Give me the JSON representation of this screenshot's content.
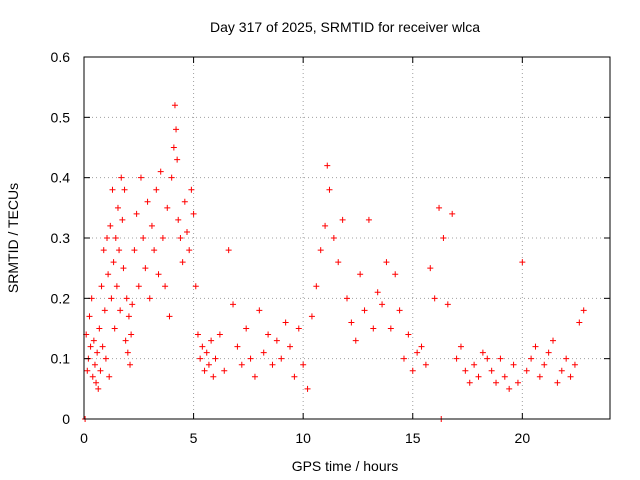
{
  "chart_data": {
    "type": "scatter",
    "title": "Day 317 of 2025, SRMTID for receiver wlca",
    "xlabel": "GPS time / hours",
    "ylabel": "SRMTID / TECUs",
    "xlim": [
      0,
      24
    ],
    "ylim": [
      0,
      0.6
    ],
    "grid": true,
    "x_ticks": [
      0,
      5,
      10,
      15,
      20
    ],
    "y_ticks": [
      0,
      0.1,
      0.2,
      0.3,
      0.4,
      0.5,
      0.6
    ],
    "x_tick_labels": [
      "0",
      "5",
      "10",
      "15",
      "20"
    ],
    "y_tick_labels": [
      "0",
      "0.1",
      "0.2",
      "0.3",
      "0.4",
      "0.5",
      "0.6"
    ],
    "marker": "plus",
    "color": "#ff0000",
    "series": [
      {
        "name": "SRMTID",
        "points": [
          [
            0.05,
            0.0
          ],
          [
            0.1,
            0.14
          ],
          [
            0.15,
            0.08
          ],
          [
            0.2,
            0.1
          ],
          [
            0.25,
            0.17
          ],
          [
            0.3,
            0.12
          ],
          [
            0.35,
            0.2
          ],
          [
            0.4,
            0.07
          ],
          [
            0.45,
            0.13
          ],
          [
            0.5,
            0.09
          ],
          [
            0.55,
            0.06
          ],
          [
            0.6,
            0.11
          ],
          [
            0.65,
            0.05
          ],
          [
            0.7,
            0.15
          ],
          [
            0.75,
            0.08
          ],
          [
            0.8,
            0.22
          ],
          [
            0.85,
            0.12
          ],
          [
            0.9,
            0.28
          ],
          [
            0.95,
            0.18
          ],
          [
            1.0,
            0.1
          ],
          [
            1.05,
            0.3
          ],
          [
            1.1,
            0.24
          ],
          [
            1.15,
            0.07
          ],
          [
            1.2,
            0.32
          ],
          [
            1.25,
            0.2
          ],
          [
            1.3,
            0.38
          ],
          [
            1.35,
            0.26
          ],
          [
            1.4,
            0.15
          ],
          [
            1.45,
            0.3
          ],
          [
            1.5,
            0.22
          ],
          [
            1.55,
            0.35
          ],
          [
            1.6,
            0.28
          ],
          [
            1.65,
            0.18
          ],
          [
            1.7,
            0.4
          ],
          [
            1.75,
            0.33
          ],
          [
            1.8,
            0.25
          ],
          [
            1.85,
            0.38
          ],
          [
            1.9,
            0.13
          ],
          [
            1.95,
            0.2
          ],
          [
            2.0,
            0.11
          ],
          [
            2.05,
            0.17
          ],
          [
            2.1,
            0.09
          ],
          [
            2.15,
            0.14
          ],
          [
            2.2,
            0.19
          ],
          [
            2.3,
            0.28
          ],
          [
            2.4,
            0.34
          ],
          [
            2.5,
            0.22
          ],
          [
            2.6,
            0.4
          ],
          [
            2.7,
            0.3
          ],
          [
            2.8,
            0.25
          ],
          [
            2.9,
            0.36
          ],
          [
            3.0,
            0.2
          ],
          [
            3.1,
            0.32
          ],
          [
            3.2,
            0.28
          ],
          [
            3.3,
            0.38
          ],
          [
            3.4,
            0.24
          ],
          [
            3.5,
            0.41
          ],
          [
            3.6,
            0.3
          ],
          [
            3.7,
            0.22
          ],
          [
            3.8,
            0.35
          ],
          [
            3.9,
            0.17
          ],
          [
            4.0,
            0.4
          ],
          [
            4.1,
            0.45
          ],
          [
            4.15,
            0.52
          ],
          [
            4.2,
            0.48
          ],
          [
            4.25,
            0.43
          ],
          [
            4.3,
            0.33
          ],
          [
            4.4,
            0.3
          ],
          [
            4.5,
            0.26
          ],
          [
            4.6,
            0.36
          ],
          [
            4.7,
            0.31
          ],
          [
            4.8,
            0.28
          ],
          [
            4.9,
            0.38
          ],
          [
            5.0,
            0.34
          ],
          [
            5.1,
            0.22
          ],
          [
            5.2,
            0.14
          ],
          [
            5.3,
            0.1
          ],
          [
            5.4,
            0.12
          ],
          [
            5.5,
            0.08
          ],
          [
            5.6,
            0.11
          ],
          [
            5.7,
            0.09
          ],
          [
            5.8,
            0.13
          ],
          [
            5.9,
            0.07
          ],
          [
            6.0,
            0.1
          ],
          [
            6.2,
            0.14
          ],
          [
            6.4,
            0.08
          ],
          [
            6.6,
            0.28
          ],
          [
            6.8,
            0.19
          ],
          [
            7.0,
            0.12
          ],
          [
            7.2,
            0.09
          ],
          [
            7.4,
            0.15
          ],
          [
            7.6,
            0.1
          ],
          [
            7.8,
            0.07
          ],
          [
            8.0,
            0.18
          ],
          [
            8.2,
            0.11
          ],
          [
            8.4,
            0.14
          ],
          [
            8.6,
            0.09
          ],
          [
            8.8,
            0.13
          ],
          [
            9.0,
            0.1
          ],
          [
            9.2,
            0.16
          ],
          [
            9.4,
            0.12
          ],
          [
            9.6,
            0.07
          ],
          [
            9.8,
            0.15
          ],
          [
            10.0,
            0.09
          ],
          [
            10.2,
            0.05
          ],
          [
            10.4,
            0.17
          ],
          [
            10.6,
            0.22
          ],
          [
            10.8,
            0.28
          ],
          [
            11.0,
            0.32
          ],
          [
            11.1,
            0.42
          ],
          [
            11.2,
            0.38
          ],
          [
            11.4,
            0.3
          ],
          [
            11.6,
            0.26
          ],
          [
            11.8,
            0.33
          ],
          [
            12.0,
            0.2
          ],
          [
            12.2,
            0.16
          ],
          [
            12.4,
            0.13
          ],
          [
            12.6,
            0.24
          ],
          [
            12.8,
            0.18
          ],
          [
            13.0,
            0.33
          ],
          [
            13.2,
            0.15
          ],
          [
            13.4,
            0.21
          ],
          [
            13.6,
            0.19
          ],
          [
            13.8,
            0.26
          ],
          [
            14.0,
            0.15
          ],
          [
            14.2,
            0.24
          ],
          [
            14.4,
            0.18
          ],
          [
            14.6,
            0.1
          ],
          [
            14.8,
            0.14
          ],
          [
            15.0,
            0.08
          ],
          [
            15.2,
            0.11
          ],
          [
            15.4,
            0.12
          ],
          [
            15.6,
            0.09
          ],
          [
            15.8,
            0.25
          ],
          [
            16.0,
            0.2
          ],
          [
            16.2,
            0.35
          ],
          [
            16.3,
            0.0
          ],
          [
            16.4,
            0.3
          ],
          [
            16.6,
            0.19
          ],
          [
            16.8,
            0.34
          ],
          [
            17.0,
            0.1
          ],
          [
            17.2,
            0.12
          ],
          [
            17.4,
            0.08
          ],
          [
            17.6,
            0.06
          ],
          [
            17.8,
            0.09
          ],
          [
            18.0,
            0.07
          ],
          [
            18.2,
            0.11
          ],
          [
            18.4,
            0.1
          ],
          [
            18.6,
            0.08
          ],
          [
            18.8,
            0.06
          ],
          [
            19.0,
            0.1
          ],
          [
            19.2,
            0.07
          ],
          [
            19.4,
            0.05
          ],
          [
            19.6,
            0.09
          ],
          [
            19.8,
            0.06
          ],
          [
            20.0,
            0.26
          ],
          [
            20.2,
            0.08
          ],
          [
            20.4,
            0.1
          ],
          [
            20.6,
            0.12
          ],
          [
            20.8,
            0.07
          ],
          [
            21.0,
            0.09
          ],
          [
            21.2,
            0.11
          ],
          [
            21.4,
            0.13
          ],
          [
            21.6,
            0.06
          ],
          [
            21.8,
            0.08
          ],
          [
            22.0,
            0.1
          ],
          [
            22.2,
            0.07
          ],
          [
            22.4,
            0.09
          ],
          [
            22.6,
            0.16
          ],
          [
            22.8,
            0.18
          ]
        ]
      }
    ]
  }
}
